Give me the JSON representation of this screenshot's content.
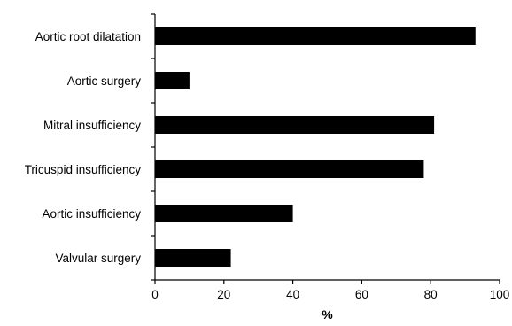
{
  "chart_data": {
    "type": "bar",
    "orientation": "horizontal",
    "categories": [
      "Aortic root dilatation",
      "Aortic surgery",
      "Mitral insufficiency",
      "Tricuspid insufficiency",
      "Aortic insufficiency",
      "Valvular surgery"
    ],
    "values": [
      93,
      10,
      81,
      78,
      40,
      22
    ],
    "title": "",
    "xlabel": "%",
    "ylabel": "",
    "xlim": [
      0,
      100
    ],
    "xticks": [
      "0",
      "20",
      "40",
      "60",
      "80",
      "100"
    ],
    "grid": false,
    "legend": "none",
    "bar_color": "#000000"
  }
}
